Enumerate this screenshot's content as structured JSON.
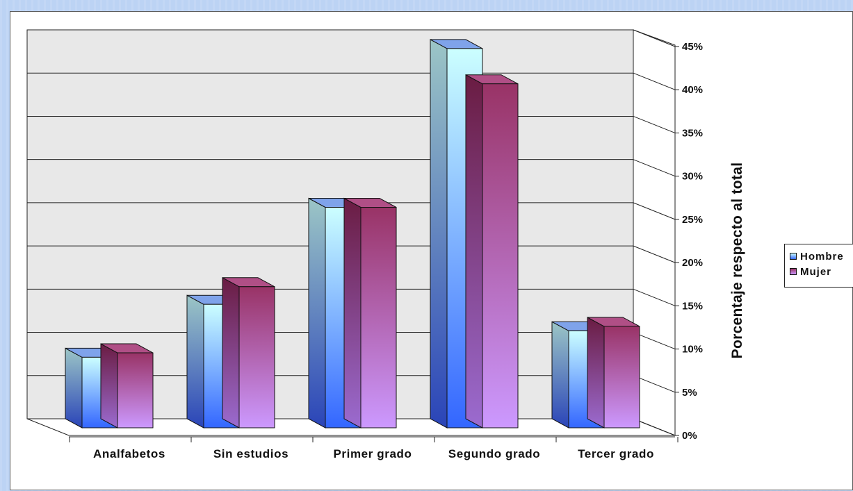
{
  "chart_data": {
    "type": "bar",
    "categories": [
      "Analfabetos",
      "Sin estudios",
      "Primer grado",
      "Segundo grado",
      "Tercer grado"
    ],
    "series": [
      {
        "name": "Hombre",
        "values": [
          8,
          14,
          25,
          43,
          11
        ]
      },
      {
        "name": "Mujer",
        "values": [
          8.5,
          16,
          25,
          39,
          11.5
        ]
      }
    ],
    "y_ticks": [
      "0%",
      "5%",
      "10%",
      "15%",
      "20%",
      "25%",
      "30%",
      "35%",
      "40%",
      "45%"
    ],
    "ylim": [
      0,
      45
    ],
    "ylabel": "Porcentaje respecto al total",
    "xlabel": "",
    "title": "",
    "grid": true,
    "legend_position": "right",
    "colors": {
      "Hombre": {
        "top": "#ccffff",
        "bottom": "#3366ff",
        "side_top": "#9cc6c6",
        "side_bottom": "#2a44b8",
        "cap": "#7fa3ea"
      },
      "Mujer": {
        "top": "#993366",
        "bottom": "#cc99ff",
        "side_top": "#6a1c42",
        "side_bottom": "#9b6bd0",
        "cap": "#b04f86"
      },
      "wall": "#e8e8e8"
    }
  }
}
